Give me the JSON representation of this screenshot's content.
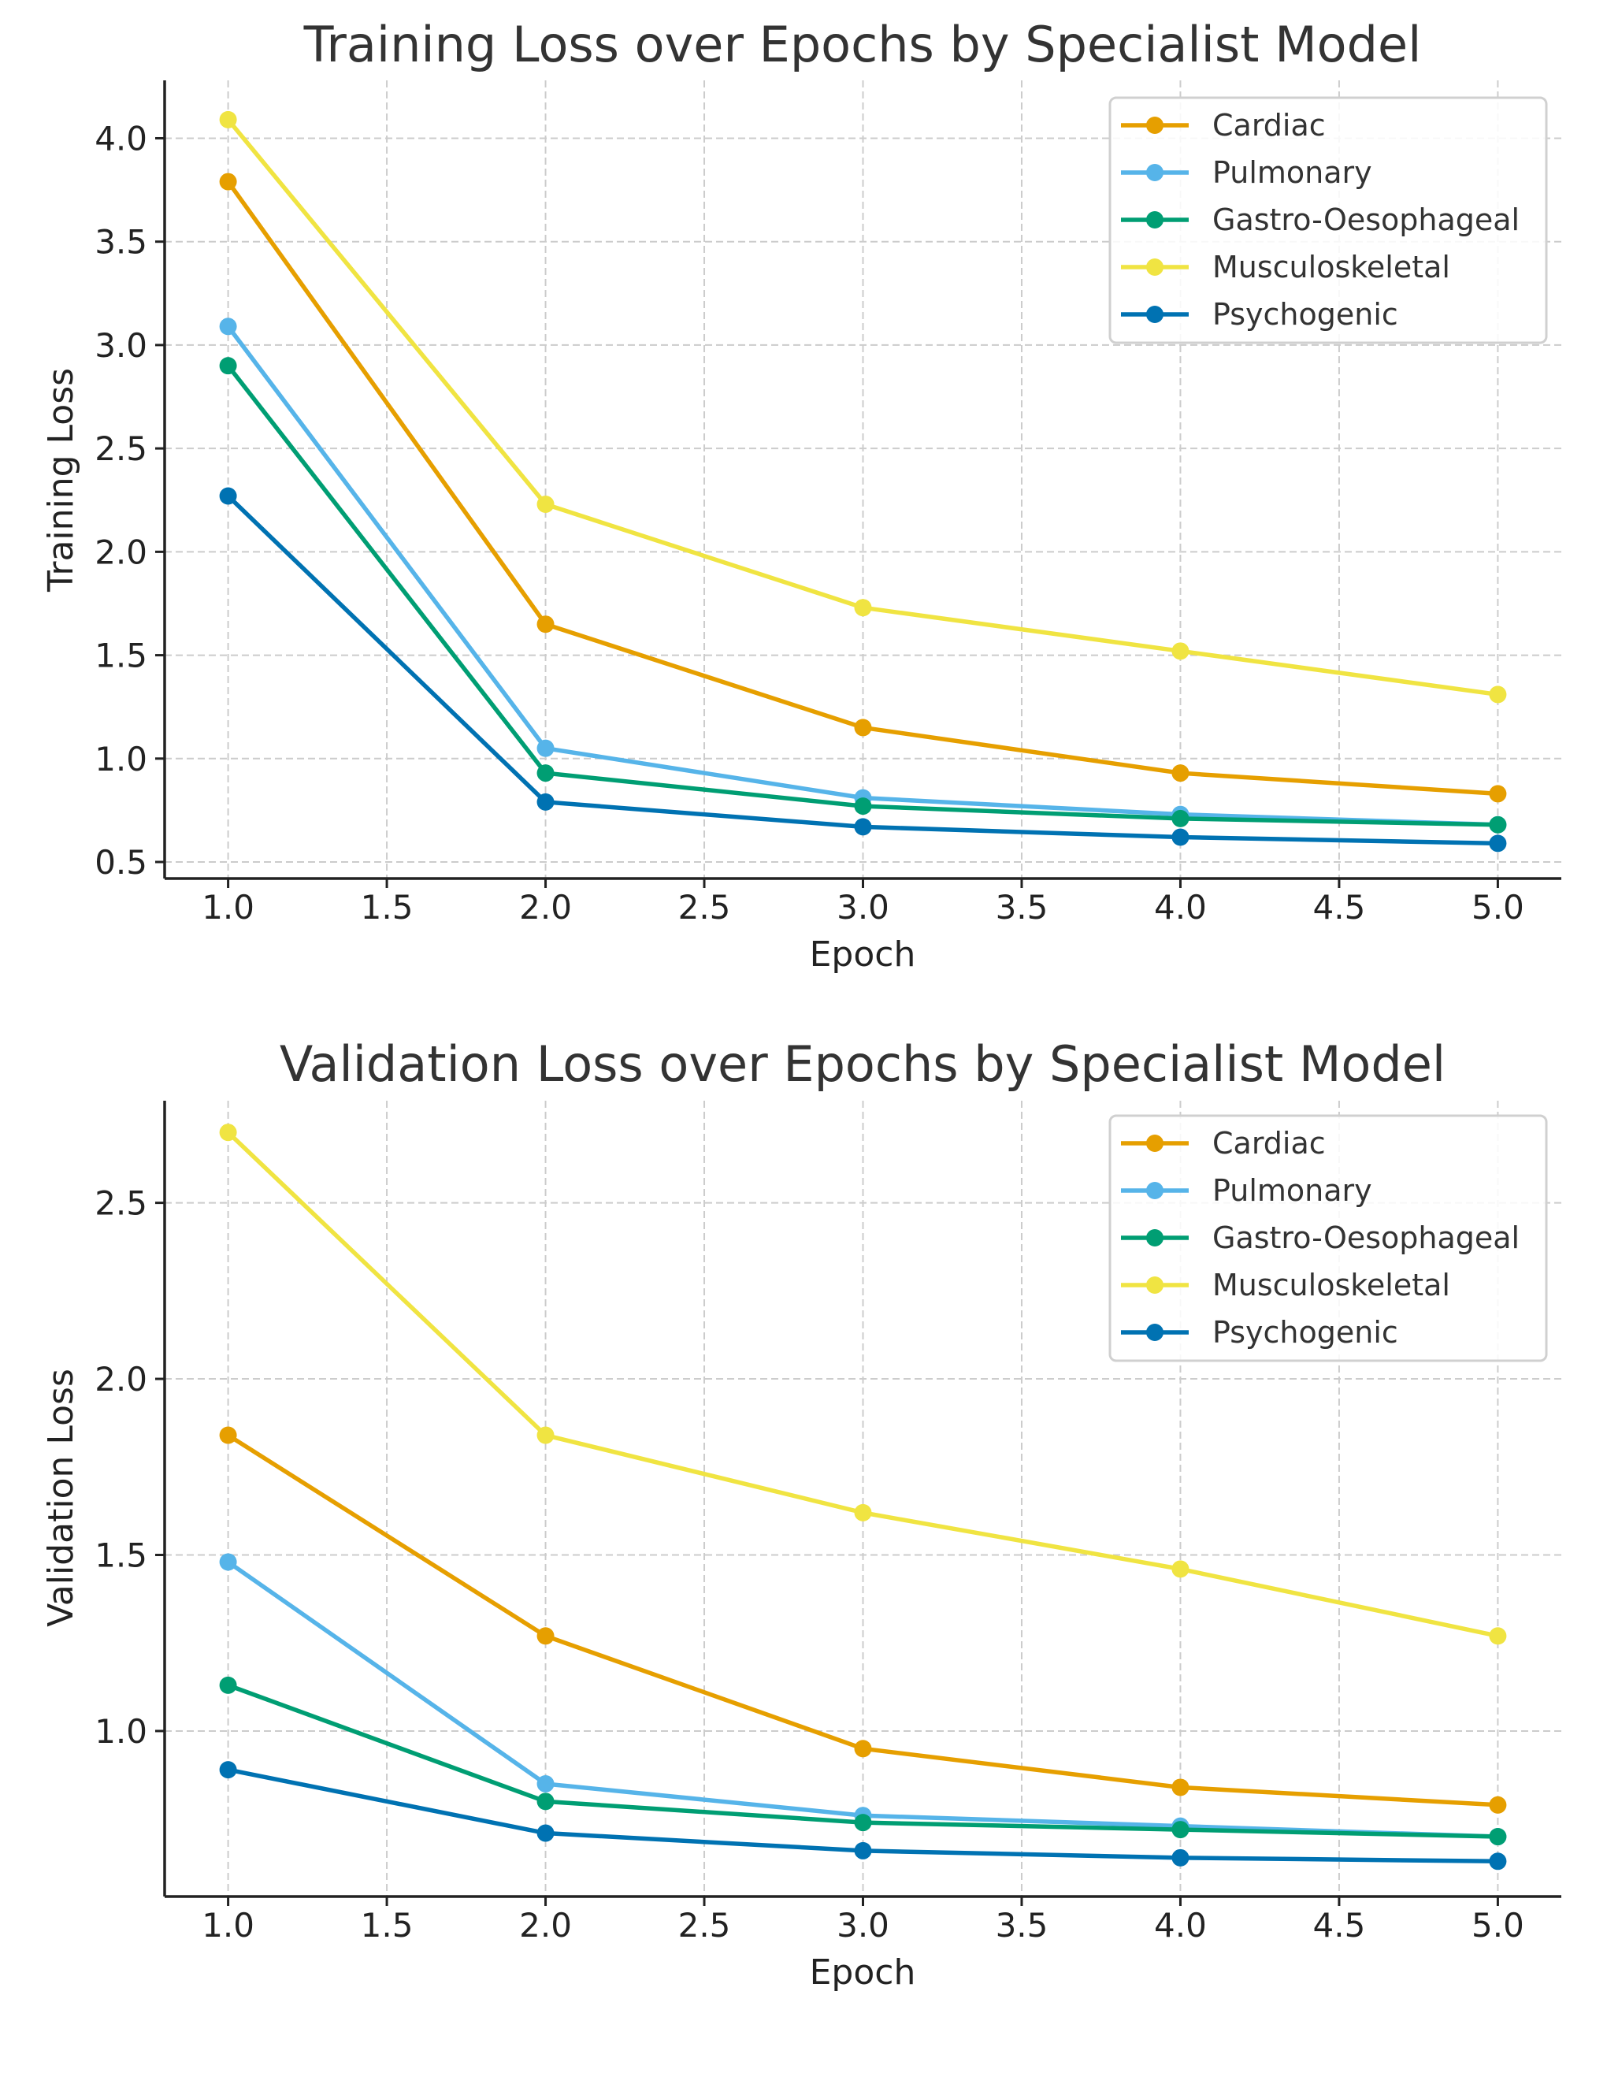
{
  "chart_data": [
    {
      "type": "line",
      "title": "Training Loss over Epochs by Specialist Model",
      "xlabel": "Epoch",
      "ylabel": "Training Loss",
      "x": [
        1,
        2,
        3,
        4,
        5
      ],
      "xlim": [
        0.8,
        5.2
      ],
      "ylim": [
        0.42,
        4.28
      ],
      "xticks": [
        "1.0",
        "1.5",
        "2.0",
        "2.5",
        "3.0",
        "3.5",
        "4.0",
        "4.5",
        "5.0"
      ],
      "yticks": [
        "0.5",
        "1.0",
        "1.5",
        "2.0",
        "2.5",
        "3.0",
        "3.5",
        "4.0"
      ],
      "grid": true,
      "legend_position": "top-right",
      "series": [
        {
          "name": "Cardiac",
          "color": "#E69F00",
          "values": [
            3.79,
            1.65,
            1.15,
            0.93,
            0.83
          ]
        },
        {
          "name": "Pulmonary",
          "color": "#56B4E9",
          "values": [
            3.09,
            1.05,
            0.81,
            0.73,
            0.68
          ]
        },
        {
          "name": "Gastro-Oesophageal",
          "color": "#009E73",
          "values": [
            2.9,
            0.93,
            0.77,
            0.71,
            0.68
          ]
        },
        {
          "name": "Musculoskeletal",
          "color": "#F0E442",
          "values": [
            4.09,
            2.23,
            1.73,
            1.52,
            1.31
          ]
        },
        {
          "name": "Psychogenic",
          "color": "#0072B2",
          "values": [
            2.27,
            0.79,
            0.67,
            0.62,
            0.59
          ]
        }
      ]
    },
    {
      "type": "line",
      "title": "Validation Loss over Epochs by Specialist Model",
      "xlabel": "Epoch",
      "ylabel": "Validation Loss",
      "x": [
        1,
        2,
        3,
        4,
        5
      ],
      "xlim": [
        0.8,
        5.2
      ],
      "ylim": [
        0.53,
        2.79
      ],
      "xticks": [
        "1.0",
        "1.5",
        "2.0",
        "2.5",
        "3.0",
        "3.5",
        "4.0",
        "4.5",
        "5.0"
      ],
      "yticks": [
        "1.0",
        "1.5",
        "2.0",
        "2.5"
      ],
      "grid": true,
      "legend_position": "top-right",
      "series": [
        {
          "name": "Cardiac",
          "color": "#E69F00",
          "values": [
            1.84,
            1.27,
            0.95,
            0.84,
            0.79
          ]
        },
        {
          "name": "Pulmonary",
          "color": "#56B4E9",
          "values": [
            1.48,
            0.85,
            0.76,
            0.73,
            0.7
          ]
        },
        {
          "name": "Gastro-Oesophageal",
          "color": "#009E73",
          "values": [
            1.13,
            0.8,
            0.74,
            0.72,
            0.7
          ]
        },
        {
          "name": "Musculoskeletal",
          "color": "#F0E442",
          "values": [
            2.7,
            1.84,
            1.62,
            1.46,
            1.27
          ]
        },
        {
          "name": "Psychogenic",
          "color": "#0072B2",
          "values": [
            0.89,
            0.71,
            0.66,
            0.64,
            0.63
          ]
        }
      ]
    }
  ]
}
